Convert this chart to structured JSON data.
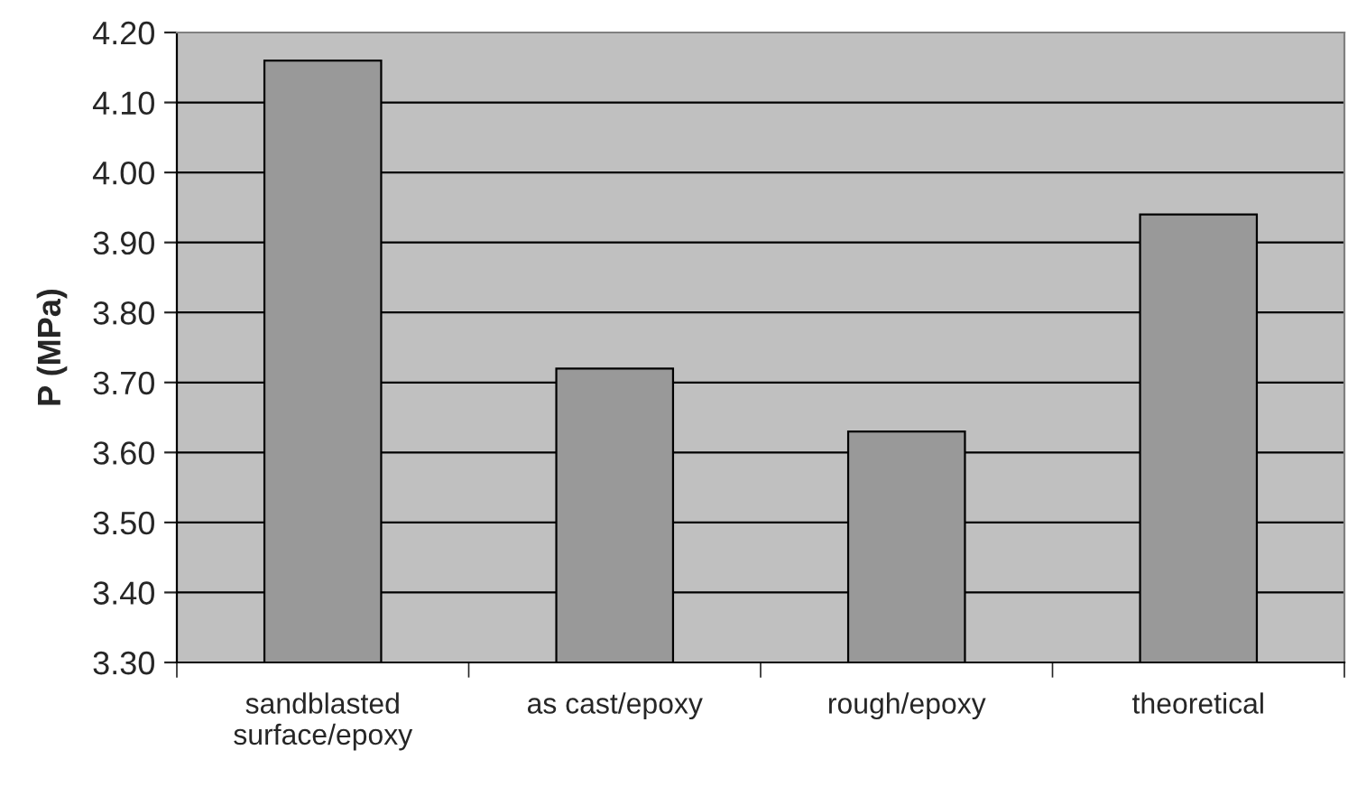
{
  "chart_data": {
    "type": "bar",
    "ylabel": "P (MPa)",
    "categories": [
      "sandblasted\nsurface/epoxy",
      "as cast/epoxy",
      "rough/epoxy",
      "theoretical"
    ],
    "values": [
      4.16,
      3.72,
      3.63,
      3.94
    ],
    "color": "#999999",
    "ylim": [
      3.3,
      4.2
    ],
    "yticks": [
      {
        "value": 3.3,
        "label": "3.30"
      },
      {
        "value": 3.4,
        "label": "3.40"
      },
      {
        "value": 3.5,
        "label": "3.50"
      },
      {
        "value": 3.6,
        "label": "3.60"
      },
      {
        "value": 3.7,
        "label": "3.70"
      },
      {
        "value": 3.8,
        "label": "3.80"
      },
      {
        "value": 3.9,
        "label": "3.90"
      },
      {
        "value": 4.0,
        "label": "4.00"
      },
      {
        "value": 4.1,
        "label": "4.10"
      },
      {
        "value": 4.2,
        "label": "4.20"
      }
    ],
    "grid": "y"
  }
}
